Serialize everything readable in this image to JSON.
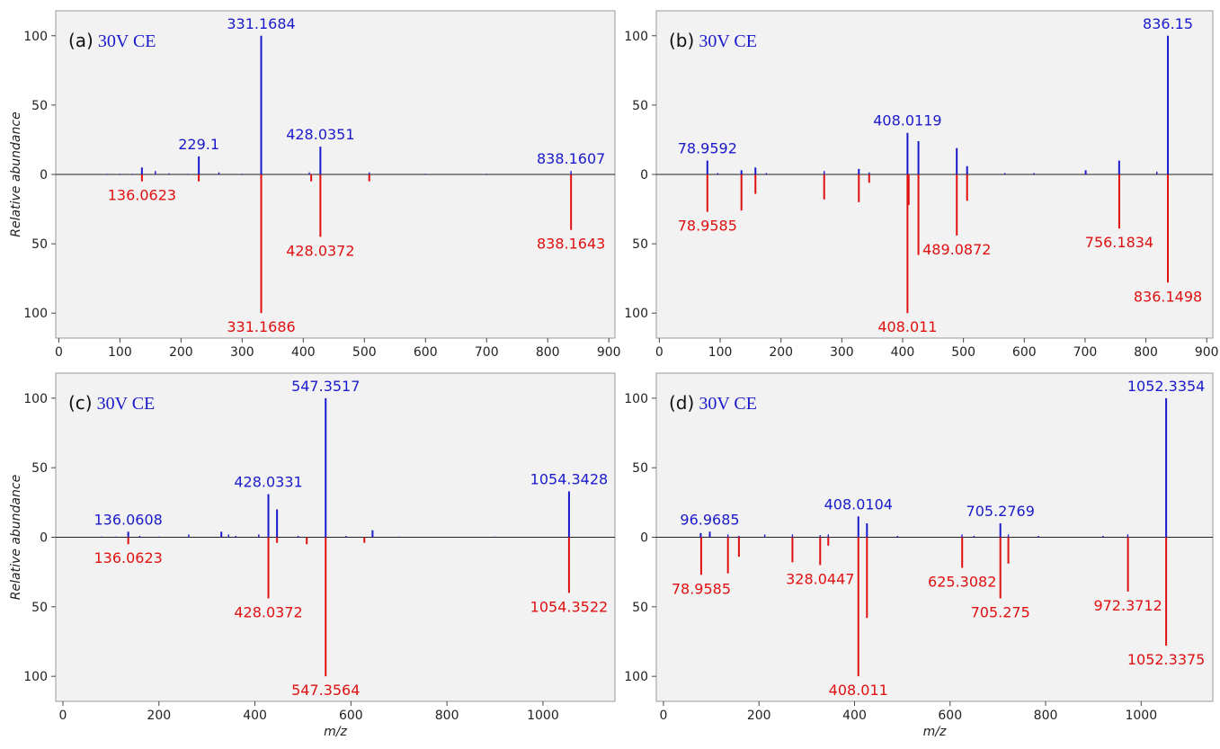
{
  "colors": {
    "top": "#1a1acc",
    "bottom": "#e01010",
    "plot_bg": "#f2f2f2",
    "zero_line": "#222222"
  },
  "chart_data": [
    {
      "type": "bar",
      "panel_label": "(a)",
      "condition": "30V CE",
      "xlim": [
        -5,
        910
      ],
      "ylim": [
        -118,
        118
      ],
      "xticks": [
        "0",
        "100",
        "200",
        "300",
        "400",
        "500",
        "600",
        "700",
        "800",
        "900"
      ],
      "yticks": [
        "100",
        "50",
        "0",
        "50",
        "100"
      ],
      "ylabel": "Relative abundance",
      "xlabel": "",
      "top": [
        {
          "x": 80,
          "y": 0.5
        },
        {
          "x": 100,
          "y": 0.5
        },
        {
          "x": 120,
          "y": 0.5
        },
        {
          "x": 136,
          "y": 5
        },
        {
          "x": 158,
          "y": 2.5
        },
        {
          "x": 180,
          "y": 0.8
        },
        {
          "x": 210,
          "y": 0.5
        },
        {
          "x": 229.1,
          "y": 13,
          "label": "229.1"
        },
        {
          "x": 262,
          "y": 1.5
        },
        {
          "x": 300,
          "y": 0.5
        },
        {
          "x": 331.1684,
          "y": 100,
          "label": "331.1684"
        },
        {
          "x": 410,
          "y": 1.5
        },
        {
          "x": 428.0351,
          "y": 20,
          "label": "428.0351"
        },
        {
          "x": 508,
          "y": 1.5
        },
        {
          "x": 600,
          "y": 0.5
        },
        {
          "x": 700,
          "y": 0.5
        },
        {
          "x": 838.1607,
          "y": 2.5,
          "label": "838.1607"
        }
      ],
      "bottom": [
        {
          "x": 136.0623,
          "y": 5,
          "label": "136.0623"
        },
        {
          "x": 229,
          "y": 5
        },
        {
          "x": 331.1686,
          "y": 100,
          "label": "331.1686"
        },
        {
          "x": 413,
          "y": 5
        },
        {
          "x": 428.0372,
          "y": 45,
          "label": "428.0372"
        },
        {
          "x": 508,
          "y": 5
        },
        {
          "x": 838.1643,
          "y": 40,
          "label": "838.1643"
        }
      ]
    },
    {
      "type": "bar",
      "panel_label": "(b)",
      "condition": "30V CE",
      "xlim": [
        -5,
        910
      ],
      "ylim": [
        -118,
        118
      ],
      "xticks": [
        "0",
        "100",
        "200",
        "300",
        "400",
        "500",
        "600",
        "700",
        "800",
        "900"
      ],
      "yticks": [
        "100",
        "50",
        "0",
        "50",
        "100"
      ],
      "ylabel": "",
      "xlabel": "",
      "top": [
        {
          "x": 78.9592,
          "y": 10,
          "label": "78.9592"
        },
        {
          "x": 96,
          "y": 1
        },
        {
          "x": 135,
          "y": 3
        },
        {
          "x": 158,
          "y": 5
        },
        {
          "x": 176,
          "y": 1
        },
        {
          "x": 271,
          "y": 2.5
        },
        {
          "x": 328,
          "y": 4
        },
        {
          "x": 345,
          "y": 1.5
        },
        {
          "x": 408.0119,
          "y": 30,
          "label": "408.0119"
        },
        {
          "x": 426,
          "y": 24
        },
        {
          "x": 489,
          "y": 19
        },
        {
          "x": 506,
          "y": 6
        },
        {
          "x": 568,
          "y": 1
        },
        {
          "x": 616,
          "y": 1
        },
        {
          "x": 701,
          "y": 3
        },
        {
          "x": 756,
          "y": 10
        },
        {
          "x": 818,
          "y": 2
        },
        {
          "x": 836.15,
          "y": 100,
          "label": "836.15"
        }
      ],
      "bottom": [
        {
          "x": 78.9585,
          "y": 27,
          "label": "78.9585"
        },
        {
          "x": 135,
          "y": 26
        },
        {
          "x": 158,
          "y": 14
        },
        {
          "x": 271,
          "y": 18
        },
        {
          "x": 328,
          "y": 20
        },
        {
          "x": 345,
          "y": 6
        },
        {
          "x": 408.011,
          "y": 100,
          "label": "408.011"
        },
        {
          "x": 410,
          "y": 22
        },
        {
          "x": 426,
          "y": 58
        },
        {
          "x": 489.0872,
          "y": 44,
          "label": "489.0872"
        },
        {
          "x": 506,
          "y": 19
        },
        {
          "x": 756.1834,
          "y": 39,
          "label": "756.1834"
        },
        {
          "x": 836.1498,
          "y": 78,
          "label": "836.1498"
        }
      ]
    },
    {
      "type": "bar",
      "panel_label": "(c)",
      "condition": "30V CE",
      "xlim": [
        -15,
        1150
      ],
      "ylim": [
        -118,
        118
      ],
      "xticks": [
        "0",
        "200",
        "400",
        "600",
        "800",
        "1000"
      ],
      "yticks": [
        "100",
        "50",
        "0",
        "50",
        "100"
      ],
      "ylabel": "Relative abundance",
      "xlabel": "m/z",
      "top": [
        {
          "x": 80,
          "y": 0.5
        },
        {
          "x": 110,
          "y": 0.5
        },
        {
          "x": 136.0608,
          "y": 4,
          "label": "136.0608"
        },
        {
          "x": 160,
          "y": 1
        },
        {
          "x": 200,
          "y": 0.5
        },
        {
          "x": 262,
          "y": 2
        },
        {
          "x": 330,
          "y": 4
        },
        {
          "x": 345,
          "y": 2
        },
        {
          "x": 360,
          "y": 1
        },
        {
          "x": 408,
          "y": 2
        },
        {
          "x": 428.0331,
          "y": 31,
          "label": "428.0331"
        },
        {
          "x": 446,
          "y": 20
        },
        {
          "x": 490,
          "y": 1
        },
        {
          "x": 547.3517,
          "y": 100,
          "label": "547.3517"
        },
        {
          "x": 590,
          "y": 1
        },
        {
          "x": 645,
          "y": 5
        },
        {
          "x": 700,
          "y": 0.5
        },
        {
          "x": 900,
          "y": 0.5
        },
        {
          "x": 1054.3428,
          "y": 33,
          "label": "1054.3428"
        }
      ],
      "bottom": [
        {
          "x": 136.0623,
          "y": 5,
          "label": "136.0623"
        },
        {
          "x": 428.0372,
          "y": 44,
          "label": "428.0372"
        },
        {
          "x": 446,
          "y": 4
        },
        {
          "x": 508,
          "y": 5
        },
        {
          "x": 547.3564,
          "y": 100,
          "label": "547.3564"
        },
        {
          "x": 628,
          "y": 4
        },
        {
          "x": 1054.3522,
          "y": 40,
          "label": "1054.3522"
        }
      ]
    },
    {
      "type": "bar",
      "panel_label": "(d)",
      "condition": "30V CE",
      "xlim": [
        -15,
        1150
      ],
      "ylim": [
        -118,
        118
      ],
      "xticks": [
        "0",
        "200",
        "400",
        "600",
        "800",
        "1000"
      ],
      "yticks": [
        "100",
        "50",
        "0",
        "50",
        "100"
      ],
      "ylabel": "",
      "xlabel": "m/z",
      "top": [
        {
          "x": 78,
          "y": 3
        },
        {
          "x": 96.9685,
          "y": 4,
          "label": "96.9685"
        },
        {
          "x": 135,
          "y": 2
        },
        {
          "x": 158,
          "y": 1
        },
        {
          "x": 212,
          "y": 2
        },
        {
          "x": 270,
          "y": 2
        },
        {
          "x": 328,
          "y": 1.5
        },
        {
          "x": 345,
          "y": 2
        },
        {
          "x": 408.0104,
          "y": 15,
          "label": "408.0104"
        },
        {
          "x": 426,
          "y": 10
        },
        {
          "x": 490,
          "y": 1
        },
        {
          "x": 625,
          "y": 2
        },
        {
          "x": 650,
          "y": 1
        },
        {
          "x": 705.2769,
          "y": 10,
          "label": "705.2769"
        },
        {
          "x": 722,
          "y": 2
        },
        {
          "x": 785,
          "y": 1
        },
        {
          "x": 920,
          "y": 1
        },
        {
          "x": 972,
          "y": 2
        },
        {
          "x": 1052.3354,
          "y": 100,
          "label": "1052.3354"
        }
      ],
      "bottom": [
        {
          "x": 78.9585,
          "y": 27,
          "label": "78.9585"
        },
        {
          "x": 135,
          "y": 26
        },
        {
          "x": 158,
          "y": 14
        },
        {
          "x": 270,
          "y": 18
        },
        {
          "x": 328.0447,
          "y": 20,
          "label": "328.0447"
        },
        {
          "x": 345,
          "y": 6
        },
        {
          "x": 408.011,
          "y": 100,
          "label": "408.011"
        },
        {
          "x": 426,
          "y": 58
        },
        {
          "x": 625.3082,
          "y": 22,
          "label": "625.3082"
        },
        {
          "x": 705.275,
          "y": 44,
          "label": "705.275"
        },
        {
          "x": 722,
          "y": 19
        },
        {
          "x": 972.3712,
          "y": 39,
          "label": "972.3712"
        },
        {
          "x": 1052.3375,
          "y": 78,
          "label": "1052.3375"
        }
      ]
    }
  ]
}
